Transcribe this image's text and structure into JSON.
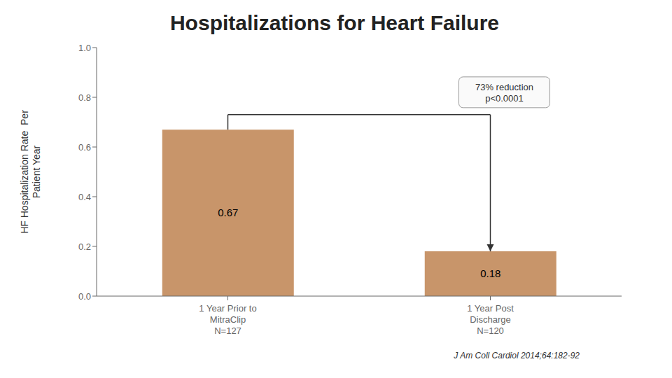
{
  "chart_data": {
    "type": "bar",
    "title": "Hospitalizations for Heart Failure",
    "ylabel": "HF Hospitalization Rate  Per\nPatient Year",
    "categories": [
      "1 Year Prior to\nMitraClip\nN=127",
      "1 Year Post\nDischarge\nN=120"
    ],
    "values": [
      0.67,
      0.18
    ],
    "color": "#C8956A",
    "ylim": [
      0.0,
      1.0
    ],
    "yticks": [
      {
        "value": 0,
        "label": "0.0"
      },
      0.2,
      0.4,
      0.6,
      0.8,
      {
        "value": 1,
        "label": "1.0"
      }
    ],
    "data_labels": true,
    "grid": false,
    "annotations": [
      "73% reduction\np<0.0001",
      "J Am Coll Cardiol 2014;64:182-92"
    ]
  }
}
